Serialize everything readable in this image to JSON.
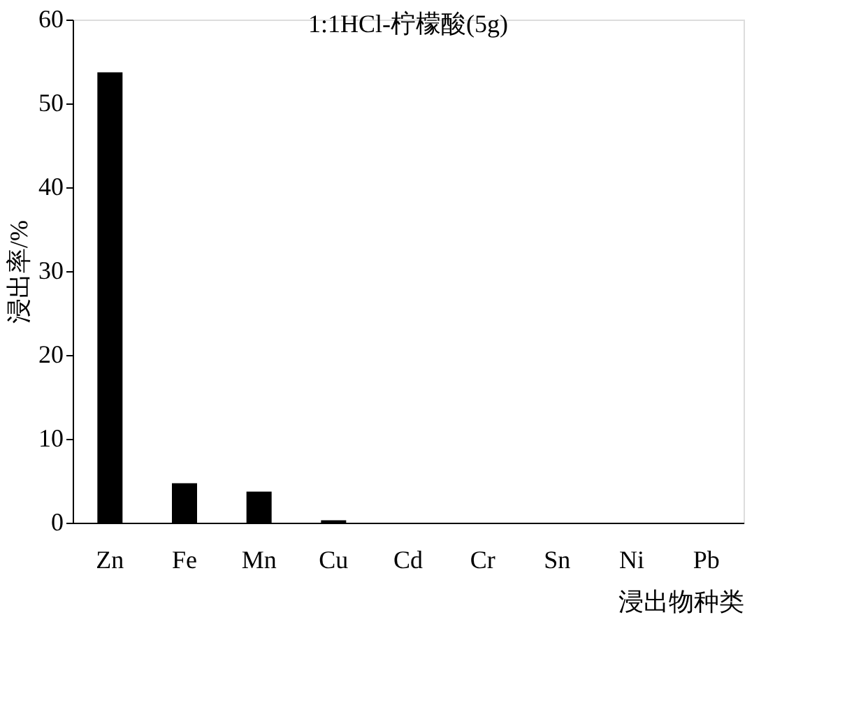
{
  "chart_data": {
    "type": "bar",
    "title": "1:1HCl-柠檬酸(5g)",
    "xlabel": "浸出物种类",
    "ylabel": "浸出率/%",
    "categories": [
      "Zn",
      "Fe",
      "Mn",
      "Cu",
      "Cd",
      "Cr",
      "Sn",
      "Ni",
      "Pb"
    ],
    "values": [
      53.7,
      4.7,
      3.7,
      0.3,
      0,
      0,
      0,
      0,
      0
    ],
    "color": "#000000",
    "ylim": [
      0,
      60
    ],
    "yticks": [
      0,
      10,
      20,
      30,
      40,
      50,
      60
    ],
    "grid": false
  }
}
